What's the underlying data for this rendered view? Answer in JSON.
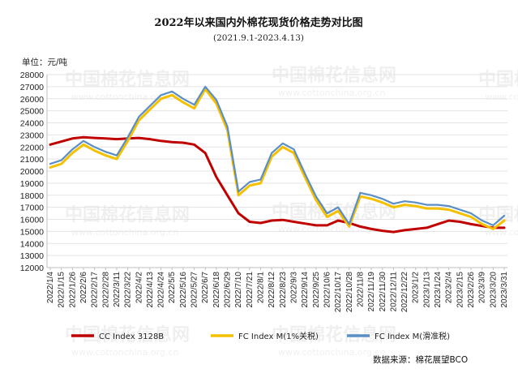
{
  "chart_data": {
    "type": "line",
    "title": "2022年以来国内外棉花现货价格走势对比图",
    "subtitle": "(2021.9.1-2023.4.13)",
    "ylabel": "单位：元/吨",
    "source": "数据来源：棉花展望BCO",
    "ylim": [
      12000,
      28000
    ],
    "yticks": [
      12000,
      13000,
      14000,
      15000,
      16000,
      17000,
      18000,
      19000,
      20000,
      21000,
      22000,
      23000,
      24000,
      25000,
      26000,
      27000,
      28000
    ],
    "categories": [
      "2022/1/4",
      "2022/1/15",
      "2022/1/26",
      "2022/2/6",
      "2022/2/17",
      "2022/2/28",
      "2022/3/11",
      "2022/3/22",
      "2022/4/2",
      "2022/4/13",
      "2022/4/24",
      "2022/5/5",
      "2022/5/16",
      "2022/5/27",
      "2022/6/7",
      "2022/6/18",
      "2022/6/29",
      "2022/7/10",
      "2022/7/21",
      "2022/8/1",
      "2022/8/12",
      "2022/8/23",
      "2022/9/3",
      "2022/9/14",
      "2022/9/25",
      "2022/10/6",
      "2022/10/17",
      "2022/10/28",
      "2022/11/8",
      "2022/11/19",
      "2022/11/30",
      "2022/12/11",
      "2022/12/22",
      "2023/1/2",
      "2023/1/13",
      "2023/1/24",
      "2023/2/4",
      "2023/2/15",
      "2023/2/26",
      "2023/3/9",
      "2023/3/20",
      "2023/3/31"
    ],
    "legend_position": "bottom",
    "series": [
      {
        "name": "CC Index 3128B",
        "color": "#c00000",
        "values": [
          22200,
          22450,
          22700,
          22800,
          22750,
          22700,
          22650,
          22700,
          22750,
          22650,
          22500,
          22400,
          22350,
          22200,
          21500,
          19500,
          18000,
          16500,
          15800,
          15700,
          15900,
          15950,
          15800,
          15650,
          15500,
          15500,
          15900,
          15700,
          15400,
          15200,
          15050,
          14950,
          15100,
          15200,
          15300,
          15600,
          15900,
          15800,
          15600,
          15450,
          15300,
          15300
        ]
      },
      {
        "name": "FC Index M(1%关税)",
        "color": "#f5c000",
        "values": [
          20300,
          20600,
          21500,
          22200,
          21700,
          21300,
          21000,
          22500,
          24200,
          25100,
          26000,
          26300,
          25700,
          25200,
          26800,
          25600,
          23400,
          18000,
          18800,
          19000,
          21200,
          22000,
          21500,
          19500,
          17600,
          16200,
          16700,
          15400,
          17900,
          17700,
          17400,
          17000,
          17200,
          17100,
          16900,
          16900,
          16800,
          16500,
          16200,
          15600,
          15200,
          15900
        ]
      },
      {
        "name": "FC Index M(滑准税)",
        "color": "#5b8ec4",
        "values": [
          20600,
          20900,
          21800,
          22500,
          22000,
          21600,
          21300,
          22800,
          24500,
          25400,
          26300,
          26600,
          26000,
          25500,
          27000,
          25900,
          23700,
          18300,
          19100,
          19300,
          21500,
          22300,
          21800,
          19800,
          17900,
          16500,
          17000,
          15600,
          18200,
          18000,
          17700,
          17300,
          17500,
          17400,
          17200,
          17200,
          17100,
          16800,
          16500,
          15900,
          15500,
          16300
        ]
      }
    ]
  },
  "watermark": {
    "brand": "中国棉花信息网",
    "url": "www.cottonchina.org.cn"
  }
}
